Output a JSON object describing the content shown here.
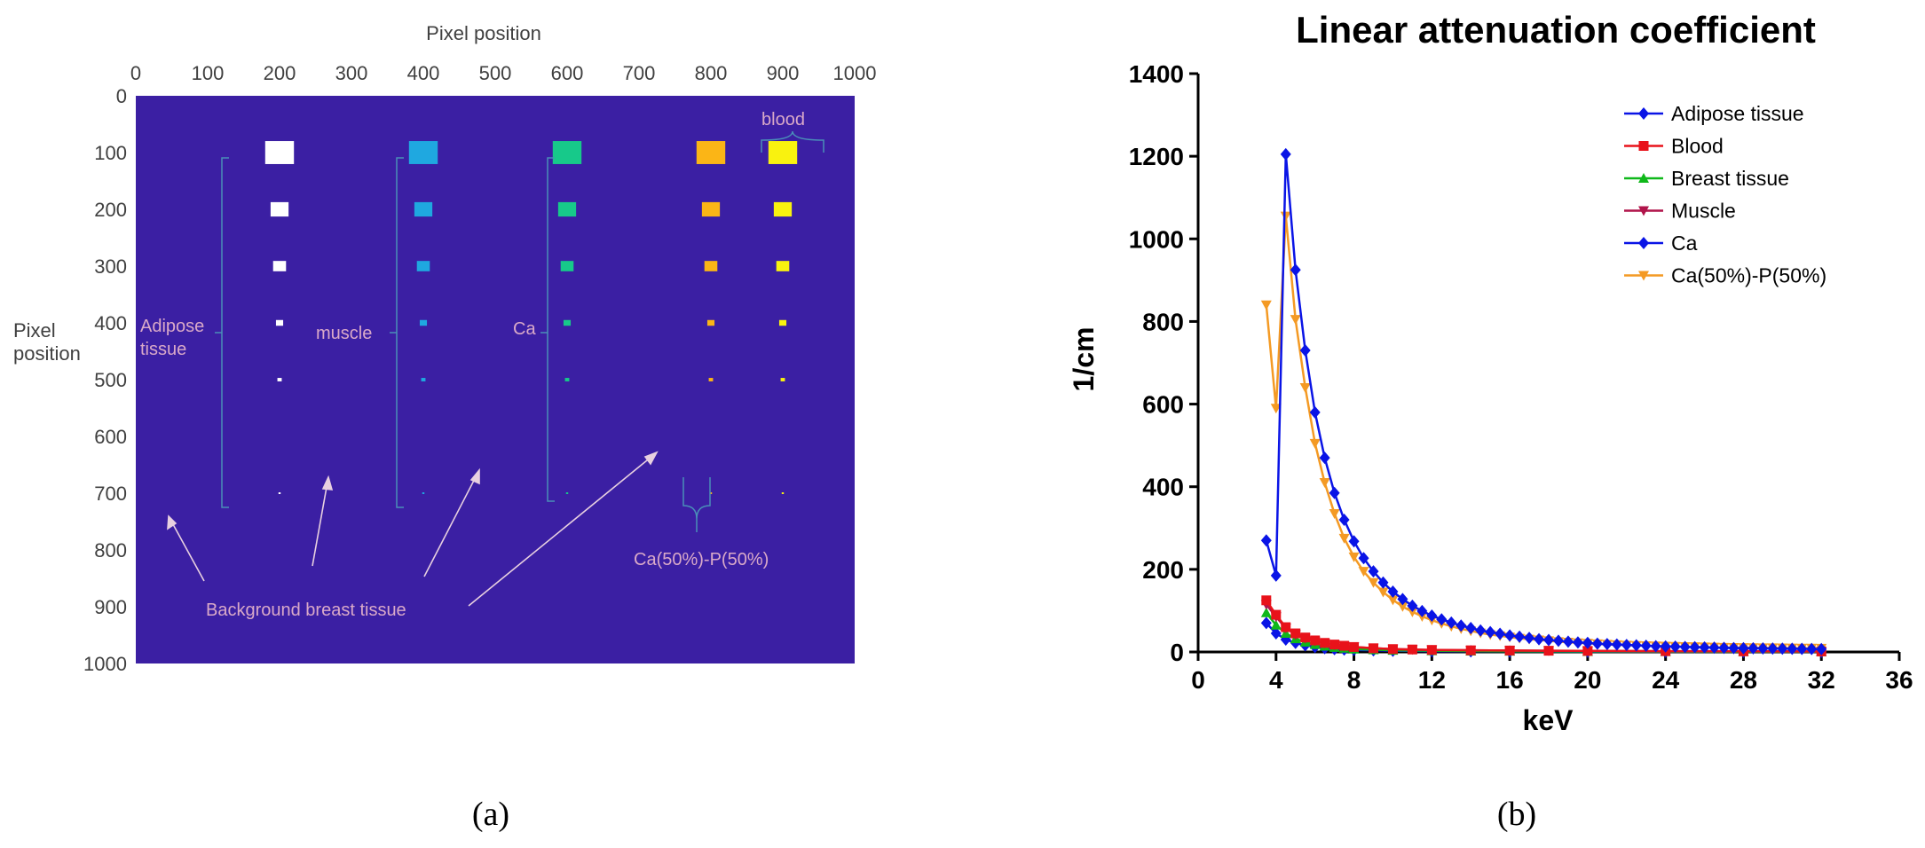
{
  "panel_a": {
    "x_title": "Pixel position",
    "y_title_line1": "Pixel",
    "y_title_line2": "position",
    "x_ticks": [
      "0",
      "100",
      "200",
      "300",
      "400",
      "500",
      "600",
      "700",
      "800",
      "900",
      "1000"
    ],
    "y_ticks": [
      "0",
      "100",
      "200",
      "300",
      "400",
      "500",
      "600",
      "700",
      "800",
      "900",
      "1000"
    ],
    "labels": {
      "adipose_line1": "Adipose",
      "adipose_line2": "tissue",
      "muscle": "muscle",
      "ca": "Ca",
      "blood": "blood",
      "ca_p": "Ca(50%)-P(50%)",
      "background": "Background breast tissue"
    },
    "colors": {
      "background": "#3b1fa3",
      "adipose": "#ffffff",
      "muscle": "#1fa8e0",
      "ca": "#17c98a",
      "ca_p": "#fbb516",
      "blood": "#f9f20f",
      "annotation": "#d9a9c8",
      "brace": "#4a8fb8"
    },
    "insert_columns_x_center": {
      "adipose": 200,
      "muscle": 400,
      "ca": 600,
      "ca_p": 800,
      "blood": 900
    },
    "insert_rows_y_center": [
      100,
      200,
      300,
      400,
      500,
      700
    ],
    "insert_sizes": [
      40,
      25,
      18,
      10,
      6,
      3
    ]
  },
  "chart_data": {
    "type": "line",
    "title": "Linear attenuation coefficient",
    "xlabel": "keV",
    "ylabel": "1/cm",
    "xlim": [
      0,
      36
    ],
    "ylim": [
      0,
      1400
    ],
    "xticks": [
      0,
      4,
      8,
      12,
      16,
      20,
      24,
      28,
      32,
      36
    ],
    "yticks": [
      0,
      200,
      400,
      600,
      800,
      1000,
      1200,
      1400
    ],
    "legend_position": "top-right",
    "series": [
      {
        "name": "Adipose tissue",
        "color": "#0a14e6",
        "marker": "diamond",
        "x": [
          3.5,
          4,
          4.5,
          5,
          5.5,
          6,
          6.5,
          7,
          7.5,
          8,
          9,
          10,
          12,
          14,
          16,
          20,
          24,
          28,
          32
        ],
        "y": [
          70,
          45,
          30,
          22,
          16,
          12,
          9,
          7,
          6,
          5,
          4,
          3,
          2,
          1.5,
          1.2,
          0.8,
          0.6,
          0.5,
          0.4
        ]
      },
      {
        "name": "Blood",
        "color": "#e8121a",
        "marker": "square",
        "x": [
          3.5,
          4,
          4.5,
          5,
          5.5,
          6,
          6.5,
          7,
          7.5,
          8,
          9,
          10,
          11,
          12,
          14,
          16,
          18,
          20,
          24,
          28,
          32
        ],
        "y": [
          125,
          90,
          60,
          45,
          35,
          28,
          22,
          18,
          15,
          12,
          9,
          7,
          6,
          5,
          4,
          3.5,
          3,
          2.5,
          2,
          1.5,
          1.2
        ]
      },
      {
        "name": "Breast tissue",
        "color": "#0fb81a",
        "marker": "triangle-up",
        "x": [
          3.5,
          4,
          4.5,
          5,
          5.5,
          6,
          6.5,
          7,
          7.5,
          8,
          9,
          10,
          12,
          14,
          16,
          20,
          24,
          28,
          32
        ],
        "y": [
          95,
          65,
          45,
          32,
          24,
          18,
          14,
          11,
          9,
          7,
          5.5,
          4,
          3,
          2.2,
          1.8,
          1.2,
          0.9,
          0.7,
          0.6
        ]
      },
      {
        "name": "Muscle",
        "color": "#b0144a",
        "marker": "triangle-down",
        "x": [
          3.5,
          4,
          4.5,
          5,
          5.5,
          6,
          6.5,
          7,
          7.5,
          8,
          9,
          10,
          11,
          12,
          14,
          16,
          18,
          20,
          24,
          28,
          32
        ],
        "y": [
          115,
          85,
          58,
          42,
          33,
          26,
          21,
          17,
          14,
          12,
          9,
          7,
          6,
          5,
          4,
          3.5,
          3,
          2.5,
          2,
          1.5,
          1.2
        ]
      },
      {
        "name": "Ca",
        "color": "#0a14e6",
        "marker": "diamond",
        "x": [
          3.5,
          4,
          4.5,
          5,
          5.5,
          6,
          6.5,
          7,
          7.5,
          8,
          8.5,
          9,
          9.5,
          10,
          10.5,
          11,
          11.5,
          12,
          12.5,
          13,
          13.5,
          14,
          14.5,
          15,
          15.5,
          16,
          16.5,
          17,
          17.5,
          18,
          18.5,
          19,
          19.5,
          20,
          20.5,
          21,
          21.5,
          22,
          22.5,
          23,
          23.5,
          24,
          24.5,
          25,
          25.5,
          26,
          26.5,
          27,
          27.5,
          28,
          28.5,
          29,
          29.5,
          30,
          30.5,
          31,
          31.5,
          32
        ],
        "y": [
          270,
          185,
          1205,
          925,
          730,
          580,
          470,
          385,
          320,
          268,
          227,
          195,
          168,
          146,
          128,
          112,
          99,
          88,
          79,
          71,
          64,
          58,
          52,
          48,
          44,
          40,
          37,
          34,
          31,
          29,
          27,
          25,
          23,
          22,
          20,
          19,
          18,
          17,
          16,
          15,
          14,
          13.5,
          13,
          12,
          11.5,
          11,
          10.5,
          10,
          9.5,
          9,
          8.8,
          8.5,
          8.2,
          8,
          7.8,
          7.5,
          7.2,
          7
        ]
      },
      {
        "name": "Ca(50%)-P(50%)",
        "color": "#f49a24",
        "marker": "triangle-down",
        "x": [
          3.5,
          4,
          4.5,
          5,
          5.5,
          6,
          6.5,
          7,
          7.5,
          8,
          8.5,
          9,
          9.5,
          10,
          10.5,
          11,
          11.5,
          12,
          12.5,
          13,
          13.5,
          14,
          14.5,
          15,
          15.5,
          16,
          16.5,
          17,
          17.5,
          18,
          18.5,
          19,
          19.5,
          20,
          20.5,
          21,
          21.5,
          22,
          22.5,
          23,
          23.5,
          24,
          24.5,
          25,
          25.5,
          26,
          26.5,
          27,
          27.5,
          28,
          28.5,
          29,
          29.5,
          30,
          30.5,
          31,
          31.5,
          32
        ],
        "y": [
          840,
          590,
          1055,
          805,
          640,
          505,
          410,
          335,
          275,
          230,
          195,
          168,
          145,
          126,
          110,
          97,
          86,
          77,
          69,
          62,
          56,
          51,
          46,
          42,
          39,
          36,
          33,
          31,
          29,
          27,
          25,
          23.5,
          22,
          21,
          19.5,
          18.5,
          17.5,
          16.5,
          15.5,
          15,
          14.5,
          14,
          13.5,
          13,
          12.5,
          12,
          11.5,
          11,
          10.8,
          10.5,
          10.2,
          10,
          9.8,
          9.6,
          9.4,
          9.2,
          9,
          8.8
        ]
      }
    ]
  },
  "captions": {
    "a": "(a)",
    "b": "(b)"
  }
}
